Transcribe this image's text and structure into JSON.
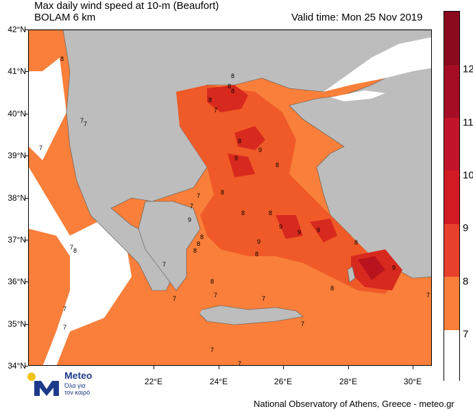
{
  "header": {
    "title_line1": "Max daily wind speed at 10-m (Beaufort)",
    "title_line2": "BOLAM 6 km",
    "valid_time": "Valid time: Mon 25 Nov 2019"
  },
  "axes": {
    "lat_labels": [
      "42°N",
      "41°N",
      "40°N",
      "39°N",
      "38°N",
      "37°N",
      "36°N",
      "35°N",
      "34°N"
    ],
    "lon_labels": [
      "22°E",
      "24°E",
      "26°E",
      "28°E",
      "30°E"
    ]
  },
  "legend": {
    "labels": [
      "12",
      "11",
      "10",
      "9",
      "8",
      "7"
    ],
    "colors": [
      "#8b0a1e",
      "#b40f28",
      "#d21a22",
      "#e8402a",
      "#f97f3a",
      "#ffffff"
    ]
  },
  "contour_labels": [
    "8",
    "7",
    "7",
    "7",
    "7",
    "8",
    "7",
    "7",
    "7",
    "7",
    "8",
    "8",
    "8",
    "8",
    "9",
    "9",
    "8",
    "8",
    "8",
    "8",
    "8",
    "9",
    "9",
    "8",
    "7",
    "7",
    "7",
    "8",
    "8",
    "8",
    "8",
    "9",
    "9",
    "8",
    "9",
    "8",
    "9",
    "7",
    "7",
    "7",
    "7",
    "7",
    "7"
  ],
  "colors": {
    "land": "#bdbdbd",
    "sea_white": "#ffffff",
    "bft7": "#f97f3a",
    "bft8": "#f05a28",
    "bft9": "#d8291e",
    "bft10": "#b9141e"
  },
  "logo": {
    "brand": "Meteo",
    "sub1": "Όλα για",
    "sub2": "τον καιρό"
  },
  "footer": "National Observatory of Athens, Greece - meteo.gr"
}
